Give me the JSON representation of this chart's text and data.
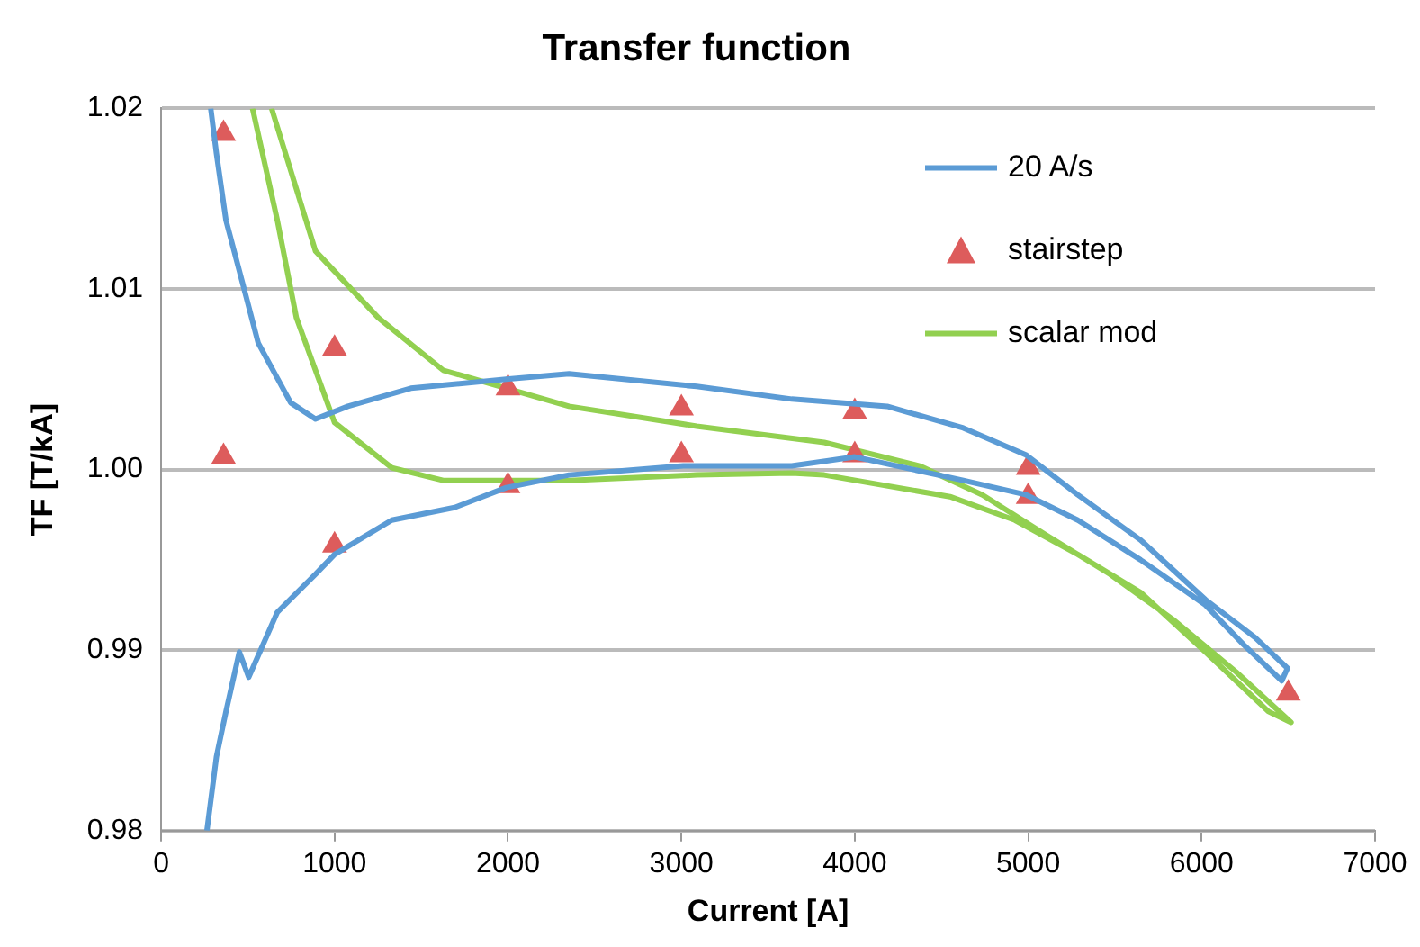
{
  "chart_data": {
    "type": "line",
    "title": "Transfer function",
    "xlabel": "Current [A]",
    "ylabel": "TF [T/kA]",
    "xlim": [
      0,
      7000
    ],
    "xticks": [
      0,
      1000,
      2000,
      3000,
      4000,
      5000,
      6000,
      7000
    ],
    "ylim": [
      0.98,
      1.02
    ],
    "yticks": [
      0.98,
      0.99,
      {
        "value": 1.0,
        "label": "1.00"
      },
      1.01,
      1.02
    ],
    "grid": "y",
    "legend": "top right",
    "series": [
      {
        "name": "20 A/s",
        "type": "line",
        "marker": "none",
        "color": "#5b9bd5",
        "x": [
          264,
          319,
          374,
          451,
          505,
          670,
          890,
          1000,
          1330,
          1692,
          1990,
          2352,
          3011,
          3637,
          4000,
          4626,
          4989,
          5286,
          5648,
          6022,
          6242,
          6462,
          6495,
          6308,
          6022,
          5648,
          5286,
          4989,
          4626,
          4187,
          3637,
          3088,
          2352,
          1990,
          1440,
          1077,
          890,
          747,
          560,
          473,
          374,
          319,
          286
        ],
        "values": [
          0.98,
          0.9841,
          0.9866,
          0.9899,
          0.9885,
          0.9921,
          0.9942,
          0.9953,
          0.9972,
          0.9979,
          0.999,
          0.9997,
          1.0002,
          1.0002,
          1.0007,
          0.9994,
          0.9986,
          0.9972,
          0.995,
          0.9925,
          0.9903,
          0.9883,
          0.989,
          0.9907,
          0.9928,
          0.9961,
          0.9986,
          1.0008,
          1.0023,
          1.0035,
          1.0039,
          1.0046,
          1.0053,
          1.005,
          1.0045,
          1.0035,
          1.0028,
          1.0037,
          1.007,
          1.0102,
          1.0138,
          1.0175,
          1.02
        ]
      },
      {
        "name": "stairstep",
        "type": "scatter",
        "marker": "triangle",
        "color": "#dd5c5c",
        "x": [
          360,
          360,
          1000,
          1000,
          2000,
          2000,
          3000,
          3000,
          4000,
          4000,
          5000,
          5000,
          6500
        ],
        "values": [
          1.0186,
          1.0007,
          1.0067,
          0.9958,
          1.0045,
          0.9991,
          1.0034,
          1.0008,
          1.0032,
          1.0008,
          1.0001,
          0.9985,
          0.9876
        ]
      },
      {
        "name": "scalar mod",
        "type": "line",
        "marker": "none",
        "color": "#92d050",
        "x": [
          527,
          670,
          780,
          1000,
          1330,
          1626,
          2352,
          3088,
          3637,
          3824,
          4549,
          4923,
          5286,
          5648,
          6022,
          6385,
          6516,
          6198,
          5835,
          5473,
          5099,
          4736,
          4374,
          3824,
          3088,
          2352,
          1626,
          1253,
          890,
          637
        ],
        "values": [
          1.02,
          1.0138,
          1.0084,
          1.0026,
          1.0001,
          0.9994,
          0.9994,
          0.9997,
          0.9998,
          0.9997,
          0.9985,
          0.9972,
          0.9953,
          0.9932,
          0.9899,
          0.9866,
          0.986,
          0.9888,
          0.9917,
          0.9942,
          0.9964,
          0.9986,
          1.0002,
          1.0015,
          1.0024,
          1.0035,
          1.0055,
          1.0084,
          1.0121,
          1.02
        ]
      }
    ]
  }
}
